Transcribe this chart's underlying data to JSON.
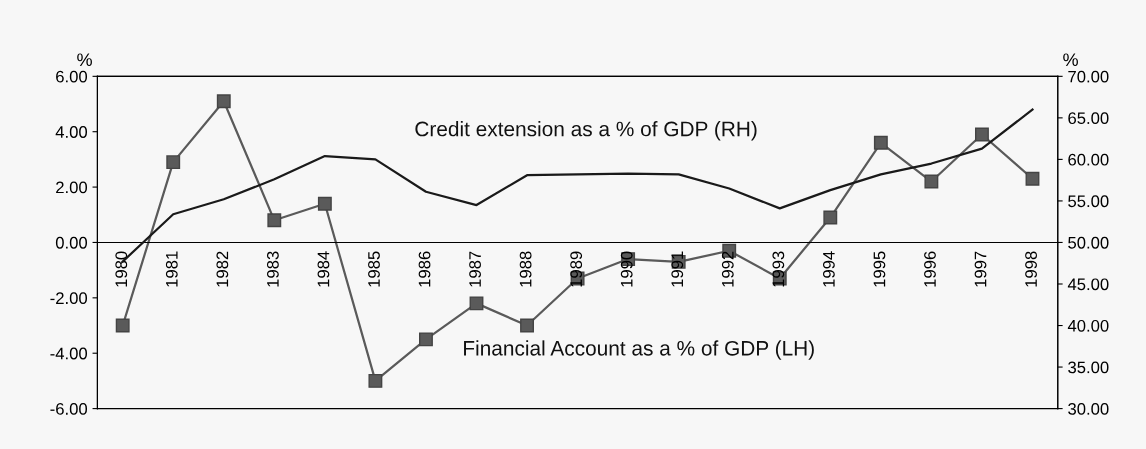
{
  "chart_data": {
    "type": "line",
    "categories": [
      "1980",
      "1981",
      "1982",
      "1983",
      "1984",
      "1985",
      "1986",
      "1987",
      "1988",
      "1989",
      "1990",
      "1991",
      "1992",
      "1993",
      "1994",
      "1995",
      "1996",
      "1997",
      "1998"
    ],
    "series": [
      {
        "name": "Financial Account as a % of GDP (LH)",
        "color": "#5a5a5a",
        "marker": "square",
        "values": [
          -3.0,
          2.9,
          5.1,
          0.8,
          1.4,
          -5.0,
          -3.5,
          -2.2,
          -3.0,
          -1.3,
          -0.6,
          -0.7,
          -0.3,
          -1.3,
          0.9,
          3.6,
          2.2,
          3.9,
          2.3
        ]
      },
      {
        "name": "Credit extension as a % of GDP (RH)",
        "color": "#1a1a1a",
        "axis": "y2",
        "marker": "none",
        "values": [
          47.7,
          53.4,
          55.2,
          57.6,
          60.4,
          60.0,
          56.1,
          54.5,
          58.1,
          58.2,
          58.3,
          58.2,
          56.5,
          54.1,
          56.3,
          58.2,
          59.5,
          61.3,
          66.0
        ]
      }
    ],
    "ylabel": "%",
    "y2label": "%",
    "ylim": [
      -6,
      6
    ],
    "yticks": [
      {
        "value": -6,
        "label": "-6.00"
      },
      {
        "value": -4,
        "label": "-4.00"
      },
      {
        "value": -2,
        "label": "-2.00"
      },
      {
        "value": 0,
        "label": "0.00"
      },
      {
        "value": 2,
        "label": "2.00"
      },
      {
        "value": 4,
        "label": "4.00"
      },
      {
        "value": 6,
        "label": "6.00"
      }
    ],
    "y2lim": [
      30,
      70
    ],
    "y2ticks": [
      {
        "value": 30,
        "label": "30.00"
      },
      {
        "value": 35,
        "label": "35.00"
      },
      {
        "value": 40,
        "label": "40.00"
      },
      {
        "value": 45,
        "label": "45.00"
      },
      {
        "value": 50,
        "label": "50.00"
      },
      {
        "value": 55,
        "label": "55.00"
      },
      {
        "value": 60,
        "label": "60.00"
      },
      {
        "value": 65,
        "label": "65.00"
      },
      {
        "value": 70,
        "label": "70.00"
      }
    ],
    "grid": false,
    "legend": false,
    "line_style": "solid"
  }
}
